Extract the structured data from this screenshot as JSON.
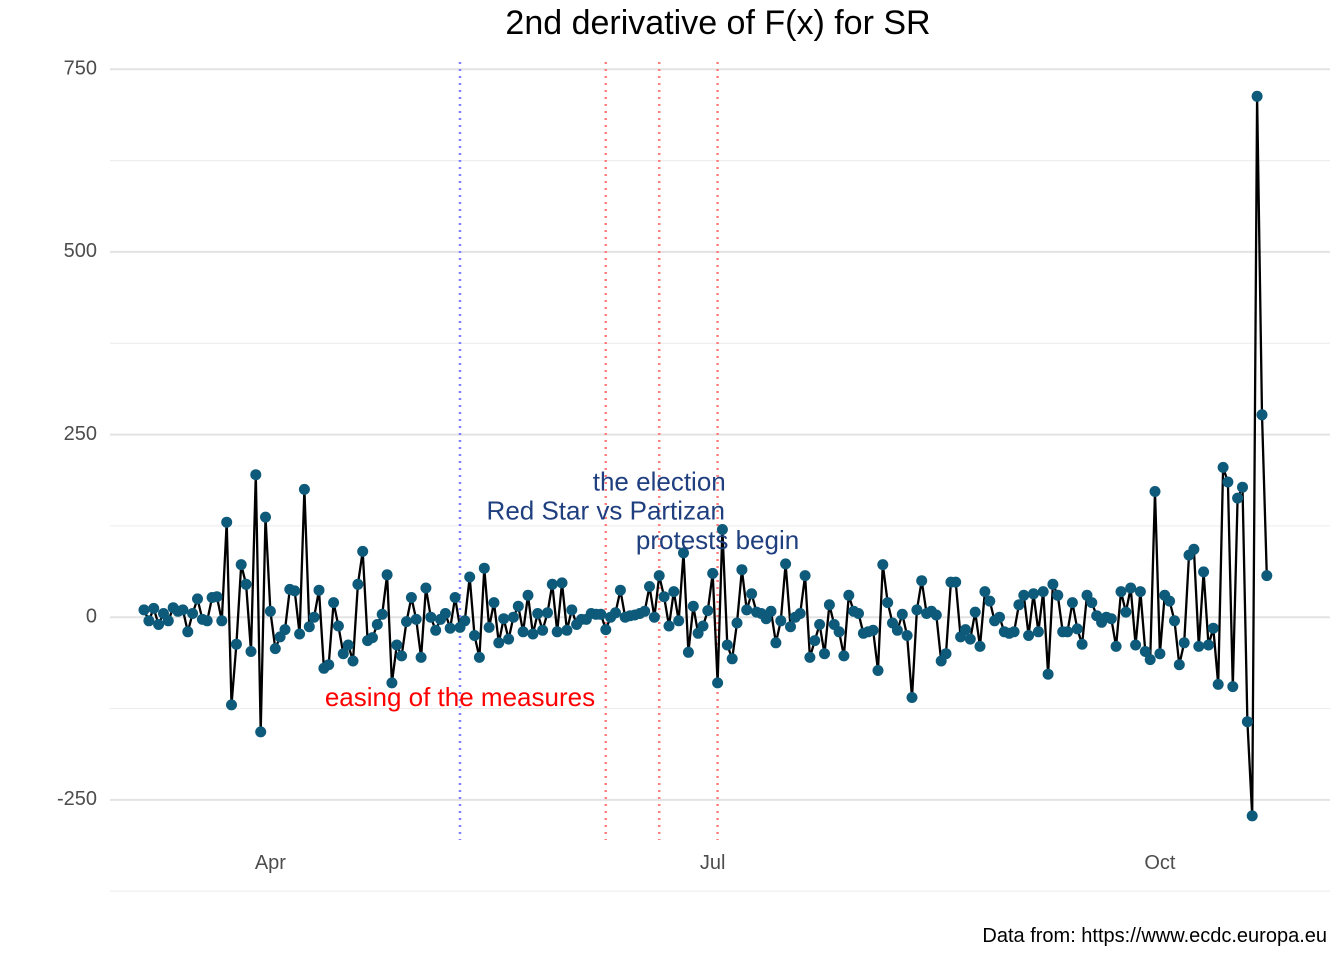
{
  "chart_data": {
    "type": "line",
    "title": "2nd derivative of F(x) for SR",
    "xlabel": "",
    "ylabel": "",
    "caption": "Data from: https://www.ecdc.europa.eu",
    "x_start": "2020-03-06",
    "x_end": "2020-10-24",
    "xlim": [
      "2020-02-28",
      "2020-11-05"
    ],
    "ylim": [
      -305,
      760
    ],
    "y_ticks": [
      -250,
      0,
      250,
      500,
      750
    ],
    "x_ticks": [
      {
        "date": "2020-04-01",
        "label": "Apr"
      },
      {
        "date": "2020-07-01",
        "label": "Jul"
      },
      {
        "date": "2020-10-01",
        "label": "Oct"
      }
    ],
    "grid": true,
    "line_color": "#000000",
    "point_color": "#0e5a7a",
    "vlines": [
      {
        "date": "2020-05-10",
        "color": "#7f7fff"
      },
      {
        "date": "2020-06-09",
        "color": "#ff7f7f"
      },
      {
        "date": "2020-06-20",
        "color": "#ff7f7f"
      },
      {
        "date": "2020-07-02",
        "color": "#ff7f7f"
      }
    ],
    "annotations": [
      {
        "text": "the election",
        "date": "2020-06-20",
        "y": 183,
        "color": "#1f3f7f"
      },
      {
        "text": "Red Star vs Partizan",
        "date": "2020-06-09",
        "y": 143,
        "color": "#1f3f7f"
      },
      {
        "text": "protests begin",
        "date": "2020-07-02",
        "y": 103,
        "color": "#1f3f7f"
      },
      {
        "text": "easing of the measures",
        "date": "2020-05-10",
        "y": -112,
        "color": "#ff0000"
      }
    ],
    "series": [
      {
        "values": [
          10,
          -5,
          12,
          -10,
          5,
          -5,
          13,
          8,
          10,
          -20,
          5,
          25,
          -3,
          -5,
          27,
          28,
          -5,
          130,
          -120,
          -37,
          72,
          45,
          -47,
          195,
          -157,
          137,
          8,
          -43,
          -27,
          -17,
          38,
          36,
          -23,
          175,
          -13,
          0,
          37,
          -70,
          -65,
          20,
          -12,
          -50,
          -38,
          -60,
          45,
          90,
          -32,
          -28,
          -10,
          4,
          58,
          -90,
          -38,
          -53,
          -6,
          27,
          -3,
          -55,
          40,
          0,
          -18,
          -3,
          5,
          -15,
          27,
          -14,
          -5,
          55,
          -25,
          -55,
          67,
          -14,
          20,
          -35,
          -2,
          -30,
          0,
          15,
          -20,
          30,
          -23,
          5,
          -18,
          6,
          45,
          -20,
          47,
          -18,
          10,
          -10,
          -3,
          -3,
          5,
          4,
          4,
          -17,
          0,
          6,
          37,
          0,
          2,
          3,
          5,
          8,
          42,
          0,
          57,
          28,
          -12,
          35,
          -5,
          88,
          -48,
          15,
          -22,
          -12,
          9,
          60,
          -90,
          120,
          -38,
          -57,
          -8,
          65,
          10,
          32,
          7,
          5,
          -2,
          8,
          -35,
          -5,
          73,
          -13,
          0,
          5,
          57,
          -55,
          -32,
          -10,
          -50,
          17,
          -10,
          -20,
          -53,
          30,
          8,
          5,
          -22,
          -20,
          -18,
          -73,
          72,
          20,
          -8,
          -18,
          4,
          -25,
          -110,
          10,
          50,
          5,
          8,
          3,
          -60,
          -50,
          48,
          48,
          -27,
          -17,
          -30,
          7,
          -40,
          35,
          22,
          -5,
          0,
          -20,
          -22,
          -20,
          17,
          30,
          -25,
          32,
          -20,
          35,
          -78,
          45,
          30,
          -20,
          -20,
          20,
          -16,
          -37,
          30,
          20,
          2,
          -7,
          0,
          -2,
          -40,
          35,
          7,
          40,
          -38,
          35,
          -47,
          -58,
          172,
          -50,
          30,
          22,
          -5,
          -65,
          -35,
          85,
          93,
          -40,
          62,
          -38,
          -15,
          -92,
          205,
          185,
          -95,
          163,
          178,
          -143,
          -272,
          713,
          277,
          57
        ]
      }
    ]
  }
}
